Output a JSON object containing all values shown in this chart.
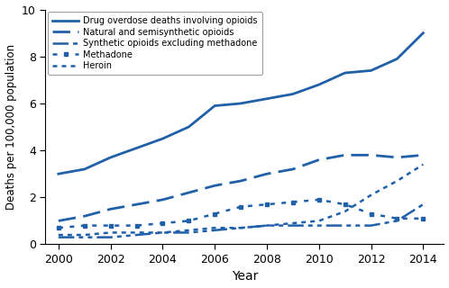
{
  "years": [
    2000,
    2001,
    2002,
    2003,
    2004,
    2005,
    2006,
    2007,
    2008,
    2009,
    2010,
    2011,
    2012,
    2013,
    2014
  ],
  "drug_overdose": [
    3.0,
    3.2,
    3.7,
    4.1,
    4.5,
    5.0,
    5.9,
    6.0,
    6.2,
    6.4,
    6.8,
    7.3,
    7.4,
    7.9,
    9.0
  ],
  "natural_semisynthetic": [
    1.0,
    1.2,
    1.5,
    1.7,
    1.9,
    2.2,
    2.5,
    2.7,
    3.0,
    3.2,
    3.6,
    3.8,
    3.8,
    3.7,
    3.8
  ],
  "synthetic_excl_methadone": [
    0.3,
    0.3,
    0.3,
    0.4,
    0.5,
    0.5,
    0.6,
    0.7,
    0.8,
    0.8,
    0.8,
    0.8,
    0.8,
    1.0,
    1.7
  ],
  "methadone": [
    0.7,
    0.8,
    0.8,
    0.8,
    0.9,
    1.0,
    1.3,
    1.6,
    1.7,
    1.8,
    1.9,
    1.7,
    1.3,
    1.1,
    1.1
  ],
  "heroin": [
    0.4,
    0.4,
    0.5,
    0.5,
    0.5,
    0.6,
    0.7,
    0.7,
    0.8,
    0.9,
    1.0,
    1.4,
    2.1,
    2.7,
    3.4
  ],
  "color": "#2060a8",
  "xlabel": "Year",
  "ylabel": "Deaths per 100,000 population",
  "ylim": [
    0,
    10
  ],
  "xlim": [
    1999.5,
    2014.8
  ],
  "yticks": [
    0,
    2,
    4,
    6,
    8,
    10
  ],
  "xticks": [
    2000,
    2002,
    2004,
    2006,
    2008,
    2010,
    2012,
    2014
  ],
  "legend_labels": [
    "Drug overdose deaths involving opioids",
    "Natural and semisynthetic opioids",
    "Synthetic opioids excluding methadone",
    "Methadone",
    "Heroin"
  ],
  "figsize": [
    4.98,
    3.2
  ],
  "dpi": 100
}
